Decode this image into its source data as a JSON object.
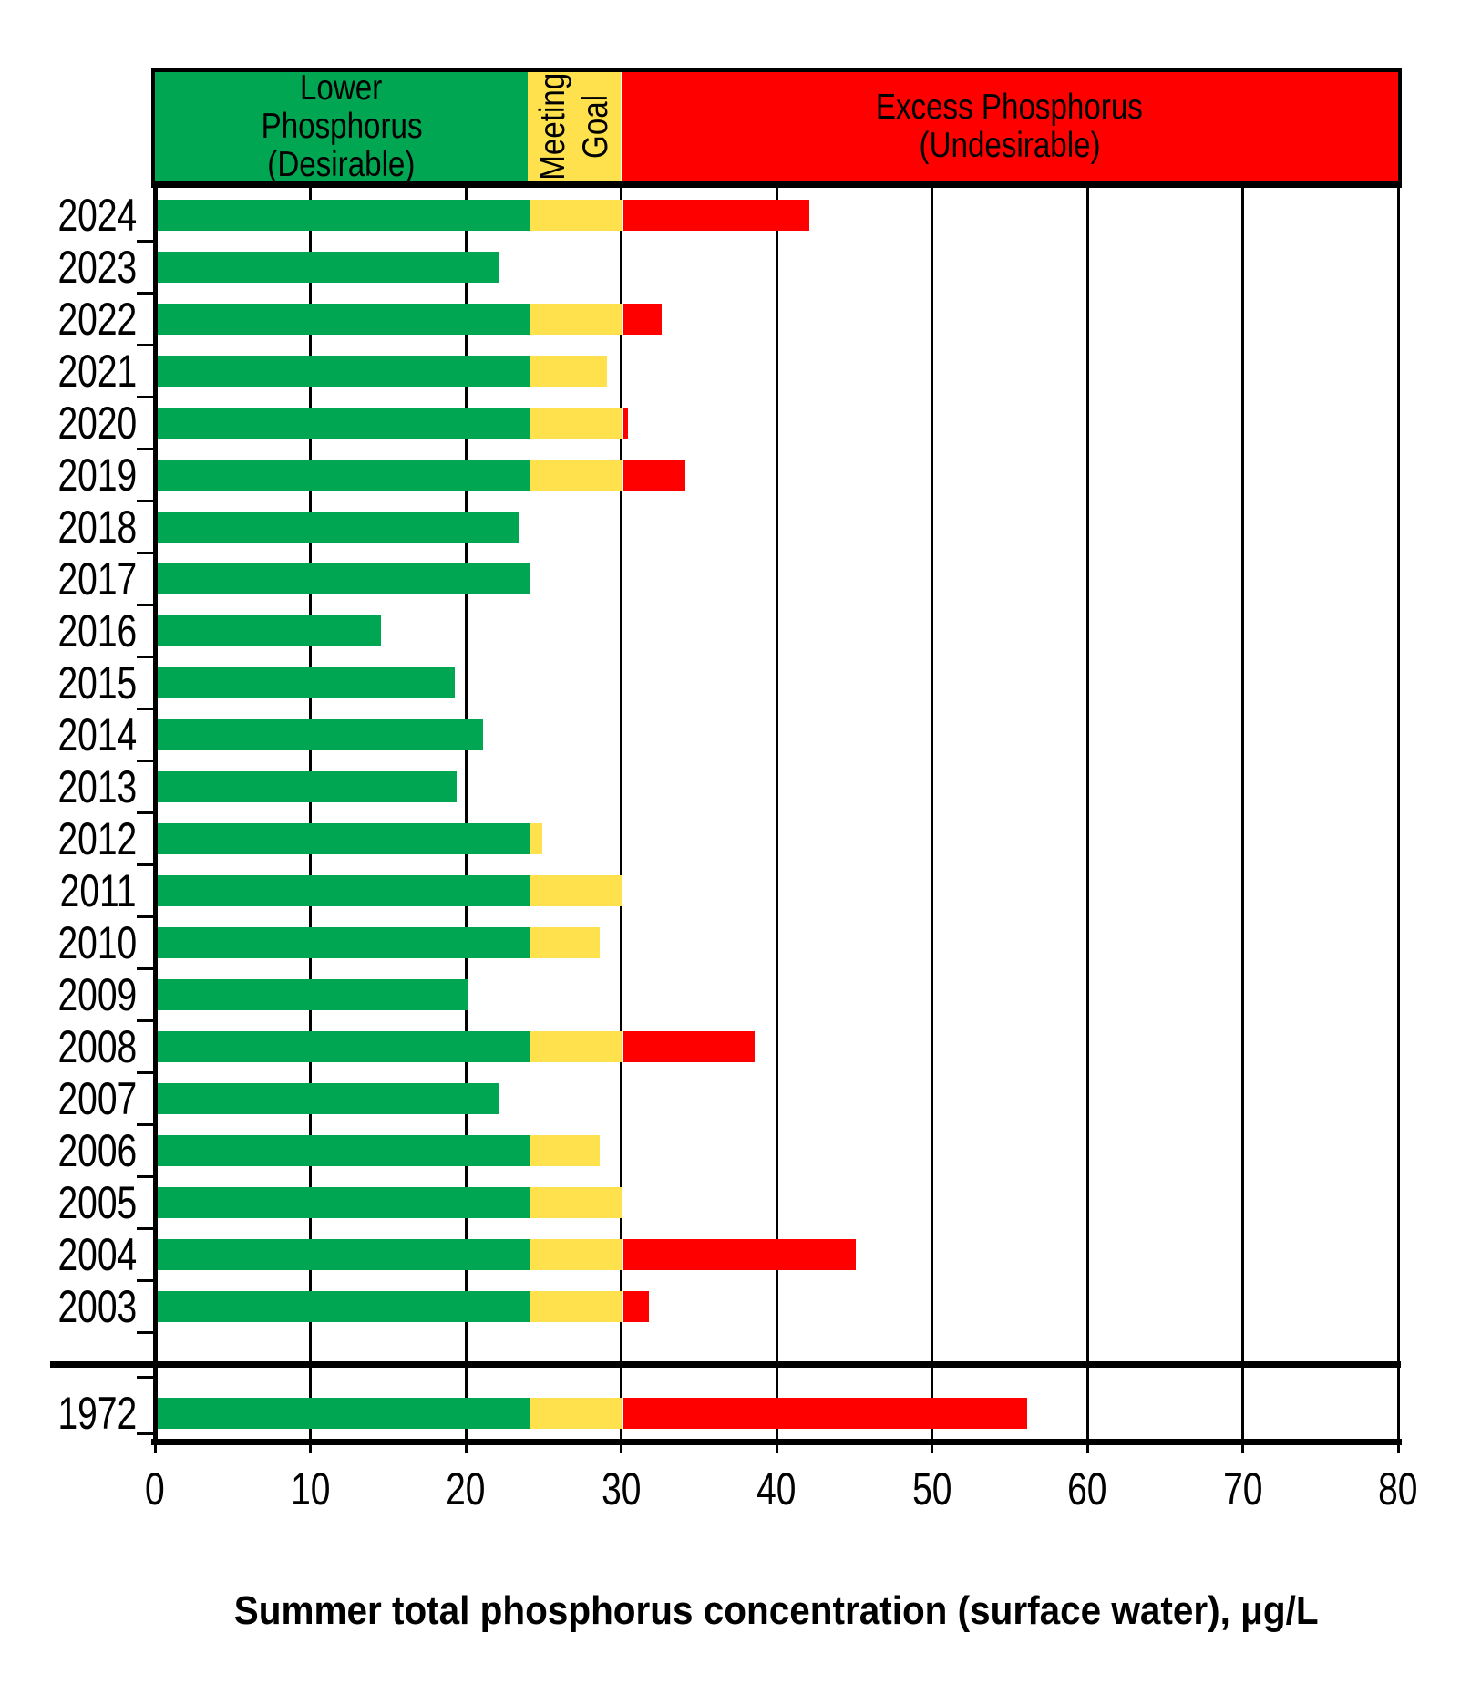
{
  "chart_data": {
    "type": "bar",
    "orientation": "horizontal",
    "stacked": true,
    "title": "",
    "xlabel": "Summer total phosphorus concentration (surface water), μg/L",
    "ylabel": "",
    "xlim": [
      0,
      80
    ],
    "x_ticks": [
      0,
      10,
      20,
      30,
      40,
      50,
      60,
      70,
      80
    ],
    "grid": "vertical-black-lines",
    "legend_position": "top-band",
    "goal_band": {
      "lower": 24,
      "upper": 30
    },
    "zones": [
      {
        "id": "desirable",
        "lines": [
          "Lower",
          "Phosphorus",
          "(Desirable)"
        ],
        "range": [
          0,
          24
        ],
        "color": "#00A651",
        "vertical_text": false
      },
      {
        "id": "meeting-goal",
        "lines": [
          "Meeting",
          "Goal"
        ],
        "range": [
          24,
          30
        ],
        "color": "#FFE14E",
        "vertical_text": true
      },
      {
        "id": "excess",
        "lines": [
          "Excess Phosphorus",
          "(Undesirable)"
        ],
        "range": [
          30,
          80
        ],
        "color": "#FF0000",
        "vertical_text": false
      }
    ],
    "segment_colors": {
      "desirable": "#00A651",
      "meeting_goal": "#FFE14E",
      "excess": "#FF0000"
    },
    "categories": [
      "2024",
      "2023",
      "2022",
      "2021",
      "2020",
      "2019",
      "2018",
      "2017",
      "2016",
      "2015",
      "2014",
      "2013",
      "2012",
      "2011",
      "2010",
      "2009",
      "2008",
      "2007",
      "2006",
      "2005",
      "2004",
      "2003",
      "1972"
    ],
    "values": [
      42,
      22,
      32.5,
      29,
      30.3,
      34,
      23.3,
      24,
      14.4,
      19.2,
      21,
      19.3,
      24.8,
      30,
      28.5,
      20,
      38.5,
      22,
      28.5,
      30,
      45,
      31.7,
      56
    ],
    "timeline_break_after": "2003"
  }
}
